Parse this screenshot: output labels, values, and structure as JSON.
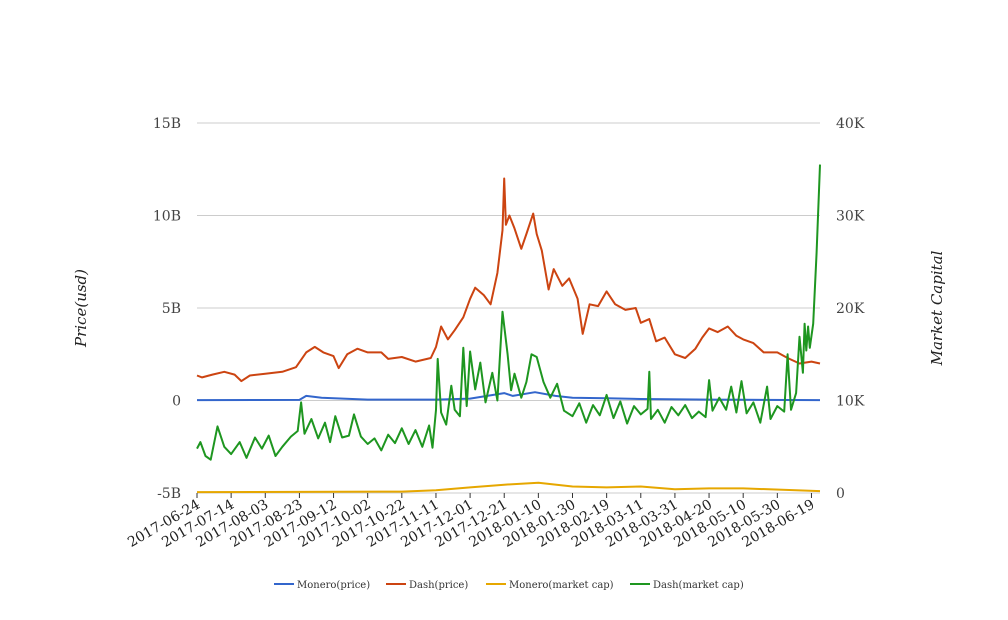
{
  "chart_data": {
    "type": "line",
    "title": "",
    "ylabel_left": "Price(usd)",
    "ylabel_right": "Market Capital",
    "left_axis": {
      "ticks": [
        "-5B",
        "0",
        "5B",
        "10B",
        "15B"
      ],
      "range": [
        -5,
        15
      ],
      "unit": "billion"
    },
    "right_axis": {
      "ticks": [
        "0",
        "10K",
        "20K",
        "30K",
        "40K"
      ],
      "range": [
        0,
        40
      ],
      "unit": "thousand"
    },
    "x_ticks": [
      "2017-06-24",
      "2017-07-14",
      "2017-08-03",
      "2017-08-23",
      "2017-09-12",
      "2017-10-02",
      "2017-10-22",
      "2017-11-11",
      "2017-12-01",
      "2017-12-21",
      "2018-01-10",
      "2018-01-30",
      "2018-02-19",
      "2018-03-11",
      "2018-03-31",
      "2018-04-20",
      "2018-05-10",
      "2018-05-30",
      "2018-06-19"
    ],
    "x_range": [
      "2017-06-24",
      "2018-06-24"
    ],
    "grid": true,
    "legend_position": "bottom",
    "series": [
      {
        "name": "Monero(price)",
        "axis": "left",
        "color": "#3366cc",
        "points": [
          [
            "2017-06-24",
            0.02
          ],
          [
            "2017-08-23",
            0.03
          ],
          [
            "2017-08-27",
            0.25
          ],
          [
            "2017-09-05",
            0.15
          ],
          [
            "2017-10-02",
            0.05
          ],
          [
            "2017-11-11",
            0.05
          ],
          [
            "2017-12-01",
            0.1
          ],
          [
            "2017-12-21",
            0.4
          ],
          [
            "2017-12-26",
            0.25
          ],
          [
            "2018-01-08",
            0.45
          ],
          [
            "2018-01-20",
            0.25
          ],
          [
            "2018-01-30",
            0.15
          ],
          [
            "2018-02-19",
            0.12
          ],
          [
            "2018-03-11",
            0.08
          ],
          [
            "2018-04-20",
            0.05
          ],
          [
            "2018-05-10",
            0.04
          ],
          [
            "2018-06-24",
            0.02
          ]
        ]
      },
      {
        "name": "Dash(price)",
        "axis": "left",
        "color": "#cc4411",
        "points": [
          [
            "2017-06-24",
            1.35
          ],
          [
            "2017-06-27",
            1.25
          ],
          [
            "2017-07-03",
            1.4
          ],
          [
            "2017-07-10",
            1.55
          ],
          [
            "2017-07-16",
            1.4
          ],
          [
            "2017-07-20",
            1.05
          ],
          [
            "2017-07-25",
            1.35
          ],
          [
            "2017-08-03",
            1.45
          ],
          [
            "2017-08-13",
            1.55
          ],
          [
            "2017-08-21",
            1.8
          ],
          [
            "2017-08-27",
            2.6
          ],
          [
            "2017-09-01",
            2.9
          ],
          [
            "2017-09-06",
            2.6
          ],
          [
            "2017-09-12",
            2.4
          ],
          [
            "2017-09-15",
            1.75
          ],
          [
            "2017-09-20",
            2.5
          ],
          [
            "2017-09-26",
            2.8
          ],
          [
            "2017-10-02",
            2.6
          ],
          [
            "2017-10-10",
            2.6
          ],
          [
            "2017-10-14",
            2.25
          ],
          [
            "2017-10-22",
            2.35
          ],
          [
            "2017-10-30",
            2.1
          ],
          [
            "2017-11-08",
            2.3
          ],
          [
            "2017-11-11",
            2.9
          ],
          [
            "2017-11-14",
            4.0
          ],
          [
            "2017-11-18",
            3.3
          ],
          [
            "2017-11-22",
            3.8
          ],
          [
            "2017-11-27",
            4.5
          ],
          [
            "2017-12-01",
            5.5
          ],
          [
            "2017-12-04",
            6.1
          ],
          [
            "2017-12-09",
            5.7
          ],
          [
            "2017-12-13",
            5.2
          ],
          [
            "2017-12-17",
            6.9
          ],
          [
            "2017-12-20",
            9.2
          ],
          [
            "2017-12-21",
            12.0
          ],
          [
            "2017-12-22",
            9.5
          ],
          [
            "2017-12-24",
            10.0
          ],
          [
            "2017-12-27",
            9.3
          ],
          [
            "2017-12-31",
            8.2
          ],
          [
            "2018-01-03",
            9.0
          ],
          [
            "2018-01-07",
            10.1
          ],
          [
            "2018-01-09",
            9.0
          ],
          [
            "2018-01-12",
            8.1
          ],
          [
            "2018-01-16",
            6.0
          ],
          [
            "2018-01-19",
            7.1
          ],
          [
            "2018-01-24",
            6.2
          ],
          [
            "2018-01-28",
            6.6
          ],
          [
            "2018-02-02",
            5.5
          ],
          [
            "2018-02-05",
            3.6
          ],
          [
            "2018-02-09",
            5.2
          ],
          [
            "2018-02-14",
            5.1
          ],
          [
            "2018-02-19",
            5.9
          ],
          [
            "2018-02-24",
            5.2
          ],
          [
            "2018-03-02",
            4.9
          ],
          [
            "2018-03-08",
            5.0
          ],
          [
            "2018-03-11",
            4.2
          ],
          [
            "2018-03-16",
            4.4
          ],
          [
            "2018-03-20",
            3.2
          ],
          [
            "2018-03-25",
            3.4
          ],
          [
            "2018-03-31",
            2.5
          ],
          [
            "2018-04-06",
            2.3
          ],
          [
            "2018-04-12",
            2.8
          ],
          [
            "2018-04-16",
            3.4
          ],
          [
            "2018-04-20",
            3.9
          ],
          [
            "2018-04-25",
            3.7
          ],
          [
            "2018-05-01",
            4.0
          ],
          [
            "2018-05-06",
            3.5
          ],
          [
            "2018-05-10",
            3.3
          ],
          [
            "2018-05-16",
            3.1
          ],
          [
            "2018-05-22",
            2.6
          ],
          [
            "2018-05-30",
            2.6
          ],
          [
            "2018-06-05",
            2.3
          ],
          [
            "2018-06-12",
            2.0
          ],
          [
            "2018-06-19",
            2.1
          ],
          [
            "2018-06-24",
            2.0
          ]
        ]
      },
      {
        "name": "Monero(market cap)",
        "axis": "right",
        "color": "#e6a700",
        "points": [
          [
            "2017-06-24",
            0.1
          ],
          [
            "2017-10-22",
            0.15
          ],
          [
            "2017-11-11",
            0.3
          ],
          [
            "2017-12-01",
            0.6
          ],
          [
            "2017-12-21",
            0.9
          ],
          [
            "2018-01-10",
            1.1
          ],
          [
            "2018-01-30",
            0.7
          ],
          [
            "2018-02-19",
            0.6
          ],
          [
            "2018-03-11",
            0.7
          ],
          [
            "2018-03-31",
            0.4
          ],
          [
            "2018-04-20",
            0.5
          ],
          [
            "2018-05-10",
            0.5
          ],
          [
            "2018-06-24",
            0.2
          ]
        ]
      },
      {
        "name": "Dash(market cap)",
        "axis": "right",
        "color": "#1e9620",
        "points": [
          [
            "2017-06-24",
            4.8
          ],
          [
            "2017-06-26",
            5.5
          ],
          [
            "2017-06-29",
            4.0
          ],
          [
            "2017-07-02",
            3.6
          ],
          [
            "2017-07-06",
            7.2
          ],
          [
            "2017-07-10",
            5.0
          ],
          [
            "2017-07-14",
            4.2
          ],
          [
            "2017-07-19",
            5.5
          ],
          [
            "2017-07-23",
            3.8
          ],
          [
            "2017-07-28",
            6.0
          ],
          [
            "2017-08-01",
            4.8
          ],
          [
            "2017-08-05",
            6.2
          ],
          [
            "2017-08-09",
            4.0
          ],
          [
            "2017-08-13",
            5.0
          ],
          [
            "2017-08-18",
            6.1
          ],
          [
            "2017-08-22",
            6.7
          ],
          [
            "2017-08-24",
            9.8
          ],
          [
            "2017-08-26",
            6.4
          ],
          [
            "2017-08-30",
            8.0
          ],
          [
            "2017-09-03",
            5.9
          ],
          [
            "2017-09-07",
            7.6
          ],
          [
            "2017-09-10",
            5.5
          ],
          [
            "2017-09-13",
            8.3
          ],
          [
            "2017-09-17",
            6.0
          ],
          [
            "2017-09-21",
            6.2
          ],
          [
            "2017-09-24",
            8.5
          ],
          [
            "2017-09-28",
            6.1
          ],
          [
            "2017-10-02",
            5.3
          ],
          [
            "2017-10-06",
            5.9
          ],
          [
            "2017-10-10",
            4.6
          ],
          [
            "2017-10-14",
            6.3
          ],
          [
            "2017-10-18",
            5.4
          ],
          [
            "2017-10-22",
            7.0
          ],
          [
            "2017-10-26",
            5.3
          ],
          [
            "2017-10-30",
            6.8
          ],
          [
            "2017-11-03",
            5.0
          ],
          [
            "2017-11-07",
            7.3
          ],
          [
            "2017-11-09",
            4.9
          ],
          [
            "2017-11-11",
            9.0
          ],
          [
            "2017-11-12",
            14.5
          ],
          [
            "2017-11-14",
            8.7
          ],
          [
            "2017-11-17",
            7.4
          ],
          [
            "2017-11-20",
            11.6
          ],
          [
            "2017-11-22",
            9.0
          ],
          [
            "2017-11-25",
            8.3
          ],
          [
            "2017-11-27",
            15.7
          ],
          [
            "2017-11-29",
            9.4
          ],
          [
            "2017-12-01",
            15.3
          ],
          [
            "2017-12-04",
            11.2
          ],
          [
            "2017-12-07",
            14.1
          ],
          [
            "2017-12-10",
            9.8
          ],
          [
            "2017-12-14",
            13.0
          ],
          [
            "2017-12-17",
            10.0
          ],
          [
            "2017-12-20",
            19.6
          ],
          [
            "2017-12-23",
            15.0
          ],
          [
            "2017-12-25",
            11.1
          ],
          [
            "2017-12-27",
            12.9
          ],
          [
            "2017-12-31",
            10.3
          ],
          [
            "2018-01-03",
            12.0
          ],
          [
            "2018-01-06",
            15.0
          ],
          [
            "2018-01-09",
            14.7
          ],
          [
            "2018-01-13",
            12.0
          ],
          [
            "2018-01-17",
            10.3
          ],
          [
            "2018-01-21",
            11.8
          ],
          [
            "2018-01-25",
            8.9
          ],
          [
            "2018-01-30",
            8.3
          ],
          [
            "2018-02-03",
            9.7
          ],
          [
            "2018-02-07",
            7.6
          ],
          [
            "2018-02-11",
            9.5
          ],
          [
            "2018-02-15",
            8.4
          ],
          [
            "2018-02-19",
            10.6
          ],
          [
            "2018-02-23",
            8.1
          ],
          [
            "2018-02-27",
            9.9
          ],
          [
            "2018-03-03",
            7.5
          ],
          [
            "2018-03-07",
            9.4
          ],
          [
            "2018-03-11",
            8.5
          ],
          [
            "2018-03-15",
            9.1
          ],
          [
            "2018-03-16",
            13.1
          ],
          [
            "2018-03-17",
            8.0
          ],
          [
            "2018-03-21",
            9.0
          ],
          [
            "2018-03-25",
            7.6
          ],
          [
            "2018-03-29",
            9.3
          ],
          [
            "2018-04-02",
            8.4
          ],
          [
            "2018-04-06",
            9.5
          ],
          [
            "2018-04-10",
            8.1
          ],
          [
            "2018-04-14",
            8.8
          ],
          [
            "2018-04-18",
            8.2
          ],
          [
            "2018-04-20",
            12.2
          ],
          [
            "2018-04-22",
            8.9
          ],
          [
            "2018-04-26",
            10.3
          ],
          [
            "2018-04-30",
            9.0
          ],
          [
            "2018-05-03",
            11.5
          ],
          [
            "2018-05-06",
            8.7
          ],
          [
            "2018-05-09",
            12.1
          ],
          [
            "2018-05-12",
            8.6
          ],
          [
            "2018-05-16",
            9.8
          ],
          [
            "2018-05-20",
            7.6
          ],
          [
            "2018-05-24",
            11.5
          ],
          [
            "2018-05-26",
            8.0
          ],
          [
            "2018-05-30",
            9.4
          ],
          [
            "2018-06-03",
            8.8
          ],
          [
            "2018-06-05",
            15.0
          ],
          [
            "2018-06-07",
            9.0
          ],
          [
            "2018-06-10",
            10.8
          ],
          [
            "2018-06-12",
            16.9
          ],
          [
            "2018-06-14",
            13.0
          ],
          [
            "2018-06-15",
            18.3
          ],
          [
            "2018-06-16",
            15.4
          ],
          [
            "2018-06-17",
            18.0
          ],
          [
            "2018-06-18",
            15.7
          ],
          [
            "2018-06-20",
            18.3
          ],
          [
            "2018-06-22",
            26.0
          ],
          [
            "2018-06-24",
            35.5
          ]
        ]
      }
    ]
  }
}
